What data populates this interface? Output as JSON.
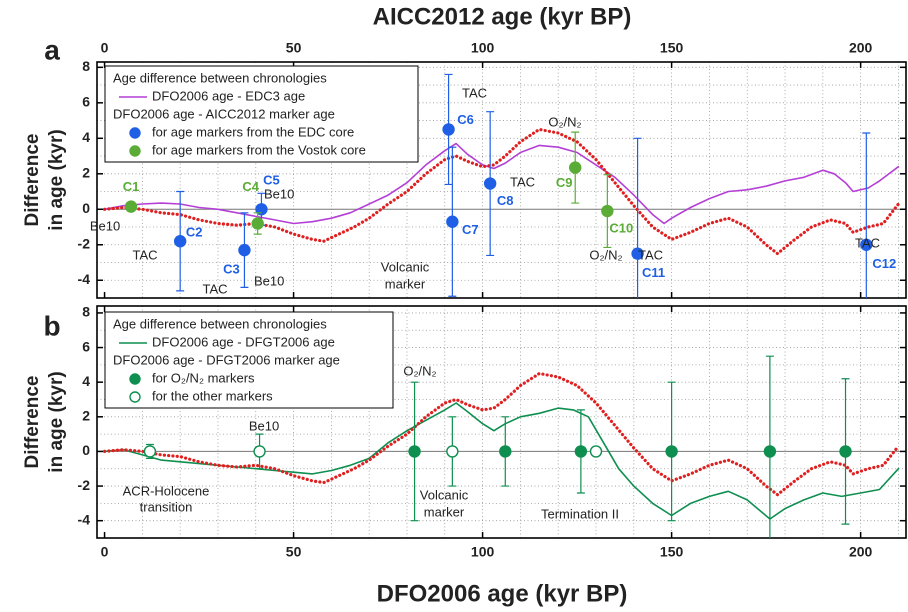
{
  "chart_data": [
    {
      "type": "line",
      "panel": "a",
      "title": "AICC2012 age (kyr BP)",
      "y_label": [
        "Difference",
        "in age (kyr)"
      ],
      "xlim": [
        -2,
        212
      ],
      "xticks": [
        0,
        50,
        100,
        150,
        200
      ],
      "ylim": [
        -5,
        8.3
      ],
      "yticks": [
        -4,
        -2,
        0,
        2,
        4,
        6,
        8
      ],
      "x_grid": [
        10,
        20,
        30,
        40,
        50,
        60,
        70,
        80,
        90,
        100,
        110,
        120,
        130,
        140,
        150,
        160,
        170,
        180,
        190,
        200,
        210
      ],
      "y_grid": [
        -4,
        -3,
        -2,
        -1,
        0,
        1,
        2,
        3,
        4,
        5,
        6,
        7,
        8
      ],
      "legend_title": "Age difference between chronologies",
      "legend_subtitle": "DFO2006 age - AICC2012 marker age",
      "series": [
        {
          "name": "DFO2006 age - EDC3 age",
          "color": "#b43fd6",
          "style": "solid",
          "x": [
            0,
            5,
            10,
            15,
            20,
            25,
            30,
            35,
            40,
            45,
            50,
            55,
            60,
            65,
            70,
            75,
            80,
            85,
            90,
            93,
            96,
            100,
            103,
            106,
            110,
            115,
            120,
            125,
            130,
            135,
            140,
            145,
            148,
            150,
            155,
            160,
            165,
            170,
            175,
            180,
            185,
            190,
            193,
            196,
            198,
            202,
            205,
            210
          ],
          "values": [
            0,
            0.2,
            0.3,
            0.35,
            0.3,
            0.1,
            0,
            -0.2,
            -0.4,
            -0.6,
            -0.8,
            -0.7,
            -0.5,
            -0.2,
            0.3,
            0.8,
            1.5,
            2.5,
            3.3,
            3.7,
            3.1,
            2.5,
            2.3,
            2.6,
            3.2,
            3.6,
            3.5,
            3.2,
            2.5,
            1.8,
            0.8,
            -0.3,
            -0.8,
            -0.5,
            0.1,
            0.6,
            1.0,
            1.1,
            1.3,
            1.6,
            1.8,
            2.2,
            2.0,
            1.5,
            1.0,
            1.2,
            1.6,
            2.4
          ]
        },
        {
          "color": "#e02020",
          "style": "dotted",
          "x": [
            0,
            5,
            10,
            15,
            20,
            25,
            30,
            35,
            40,
            45,
            50,
            55,
            58,
            62,
            66,
            70,
            75,
            80,
            85,
            90,
            93,
            96,
            100,
            103,
            106,
            110,
            115,
            120,
            125,
            130,
            135,
            140,
            145,
            150,
            155,
            160,
            165,
            170,
            175,
            178,
            182,
            187,
            192,
            196,
            198,
            202,
            206,
            210
          ],
          "values": [
            0,
            0.1,
            0,
            -0.2,
            -0.3,
            -0.6,
            -0.8,
            -0.9,
            -0.8,
            -1.0,
            -1.4,
            -1.7,
            -1.8,
            -1.4,
            -1.0,
            -0.5,
            0.3,
            1.0,
            2.0,
            2.8,
            3.0,
            2.7,
            2.4,
            2.5,
            3.0,
            3.8,
            4.5,
            4.3,
            3.8,
            2.8,
            1.5,
            0.2,
            -1.0,
            -1.7,
            -1.3,
            -0.8,
            -0.5,
            -1.0,
            -2.0,
            -2.5,
            -1.8,
            -1.0,
            -0.6,
            -0.8,
            -1.3,
            -1.0,
            -0.8,
            0.3
          ]
        }
      ],
      "markers": [
        {
          "name": "for age markers from the EDC core",
          "color": "#1f5fe6",
          "filled": true,
          "x": [
            20,
            37,
            41.5,
            91,
            92,
            102,
            141,
            201.5
          ],
          "values": [
            -1.8,
            -2.3,
            0,
            4.5,
            -0.7,
            1.45,
            -2.5,
            -2.0
          ],
          "errors": [
            2.8,
            2.1,
            0.9,
            3.1,
            4.2,
            4.05,
            6.5,
            6.3
          ],
          "labels": [
            "C2",
            "C3",
            "C5",
            "C6",
            "C7",
            "C8",
            "C11",
            "C12"
          ]
        },
        {
          "name": "for age markers from the Vostok core",
          "color": "#5aac36",
          "filled": true,
          "x": [
            7,
            40.5,
            124.5,
            133
          ],
          "values": [
            0.15,
            -0.8,
            2.35,
            -0.1
          ],
          "errors": [
            null,
            0.6,
            2.0,
            2.05
          ],
          "labels": [
            "C1",
            "C4",
            "C9",
            "C10"
          ]
        }
      ],
      "annotations": [
        "TAC",
        "Be10",
        "Be10",
        "TAC",
        "TAC",
        "Be10",
        "Volcanic",
        "marker",
        "TAC",
        "O₂/N₂",
        "O₂/N₂",
        "TAC",
        "TAC"
      ]
    },
    {
      "type": "line",
      "panel": "b",
      "x_label": "DFO2006 age (kyr BP)",
      "y_label": [
        "Difference",
        "in age (kyr)"
      ],
      "xlim": [
        -2,
        212
      ],
      "xticks": [
        0,
        50,
        100,
        150,
        200
      ],
      "ylim": [
        -5,
        8.4
      ],
      "yticks": [
        -4,
        -2,
        0,
        2,
        4,
        6,
        8
      ],
      "x_grid": [
        10,
        20,
        30,
        40,
        50,
        60,
        70,
        80,
        90,
        100,
        110,
        120,
        130,
        140,
        150,
        160,
        170,
        180,
        190,
        200,
        210
      ],
      "y_grid": [
        -4,
        -3,
        -2,
        -1,
        0,
        1,
        2,
        3,
        4,
        5,
        6,
        7,
        8
      ],
      "legend_title": "Age difference between chronologies",
      "legend_subtitle": "DFO2006 age - DFGT2006 marker age",
      "series": [
        {
          "name": "DFO2006 age - DFGT2006 age",
          "color": "#0e8f50",
          "style": "solid",
          "x": [
            0,
            5,
            10,
            15,
            20,
            25,
            30,
            35,
            40,
            45,
            50,
            55,
            60,
            65,
            70,
            75,
            80,
            85,
            90,
            93,
            96,
            100,
            103,
            106,
            110,
            115,
            120,
            124,
            128,
            132,
            136,
            140,
            145,
            150,
            155,
            160,
            165,
            170,
            176,
            180,
            185,
            190,
            195,
            200,
            205,
            210
          ],
          "values": [
            0,
            0.1,
            -0.2,
            -0.5,
            -0.6,
            -0.7,
            -0.8,
            -0.9,
            -1.0,
            -1.1,
            -1.2,
            -1.3,
            -1.1,
            -0.8,
            -0.4,
            0.5,
            1.2,
            1.8,
            2.4,
            2.8,
            2.3,
            1.6,
            1.2,
            1.6,
            2.0,
            2.2,
            2.5,
            2.4,
            2.0,
            0.5,
            -1.0,
            -2.0,
            -3.0,
            -3.7,
            -3.0,
            -2.6,
            -2.3,
            -2.8,
            -3.9,
            -3.3,
            -2.8,
            -2.4,
            -2.6,
            -2.4,
            -2.2,
            -1.0
          ]
        },
        {
          "color": "#e02020",
          "style": "dotted",
          "x": [
            0,
            5,
            10,
            15,
            20,
            25,
            30,
            35,
            40,
            45,
            50,
            55,
            58,
            62,
            66,
            70,
            75,
            80,
            85,
            90,
            93,
            96,
            100,
            103,
            106,
            110,
            115,
            120,
            125,
            130,
            135,
            140,
            145,
            150,
            155,
            160,
            165,
            170,
            175,
            178,
            182,
            187,
            192,
            196,
            198,
            202,
            206,
            210
          ],
          "values": [
            0,
            0.1,
            0,
            -0.2,
            -0.3,
            -0.6,
            -0.8,
            -0.9,
            -0.8,
            -1.0,
            -1.4,
            -1.7,
            -1.8,
            -1.4,
            -1.0,
            -0.5,
            0.3,
            1.0,
            2.0,
            2.8,
            3.0,
            2.7,
            2.4,
            2.5,
            3.0,
            3.8,
            4.5,
            4.3,
            3.8,
            2.8,
            1.5,
            0.2,
            -1.0,
            -1.7,
            -1.3,
            -0.8,
            -0.5,
            -1.0,
            -2.0,
            -2.5,
            -1.8,
            -1.0,
            -0.6,
            -0.8,
            -1.3,
            -1.0,
            -0.8,
            0.3
          ]
        }
      ],
      "markers": [
        {
          "name": "for O₂/N₂ markers",
          "color": "#0e8f50",
          "filled": true,
          "x": [
            82,
            106,
            126,
            150,
            176,
            196
          ],
          "values": [
            0,
            0,
            0,
            0,
            0,
            0
          ],
          "errors": [
            4.0,
            2.0,
            2.4,
            4.0,
            5.5,
            4.2
          ]
        },
        {
          "name": "for the other markers",
          "color": "#0e8f50",
          "filled": false,
          "x": [
            12,
            41,
            92,
            130
          ],
          "values": [
            0,
            0,
            0,
            0
          ],
          "errors": [
            0.4,
            1.0,
            2.0,
            null
          ]
        }
      ],
      "annotations": [
        "Be10",
        "O₂/N₂",
        "ACR-Holocene",
        "transition",
        "Volcanic",
        "marker",
        "Termination II"
      ]
    }
  ]
}
